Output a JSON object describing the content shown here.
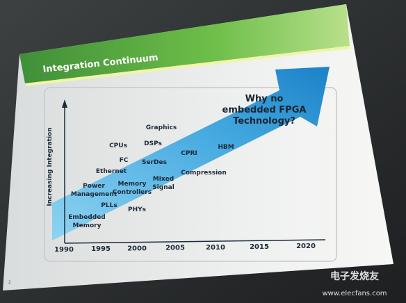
{
  "header": {
    "title": "Integration Continuum"
  },
  "axis_label": "Increasing Integration",
  "callout": [
    "Why no",
    "embedded FPGA",
    "Technology?"
  ],
  "items": [
    {
      "lines": [
        "Graphics"
      ]
    },
    {
      "lines": [
        "CPUs"
      ]
    },
    {
      "lines": [
        "DSPs"
      ]
    },
    {
      "lines": [
        "FC"
      ]
    },
    {
      "lines": [
        "SerDes"
      ]
    },
    {
      "lines": [
        "CPRI"
      ]
    },
    {
      "lines": [
        "HBM"
      ]
    },
    {
      "lines": [
        "Ethernet"
      ]
    },
    {
      "lines": [
        "Power",
        "Management"
      ]
    },
    {
      "lines": [
        "Memory",
        "Controllers"
      ]
    },
    {
      "lines": [
        "Mixed",
        "Signal"
      ]
    },
    {
      "lines": [
        "Compression"
      ]
    },
    {
      "lines": [
        "PLLs"
      ]
    },
    {
      "lines": [
        "PHYs"
      ]
    },
    {
      "lines": [
        "Embedded",
        "Memory"
      ]
    }
  ],
  "years": [
    "1990",
    "1995",
    "2000",
    "2005",
    "2010",
    "2015",
    "2020"
  ],
  "page_number": "2",
  "watermark": {
    "brand": "电子发烧友",
    "url": "www.elecfans.com"
  }
}
